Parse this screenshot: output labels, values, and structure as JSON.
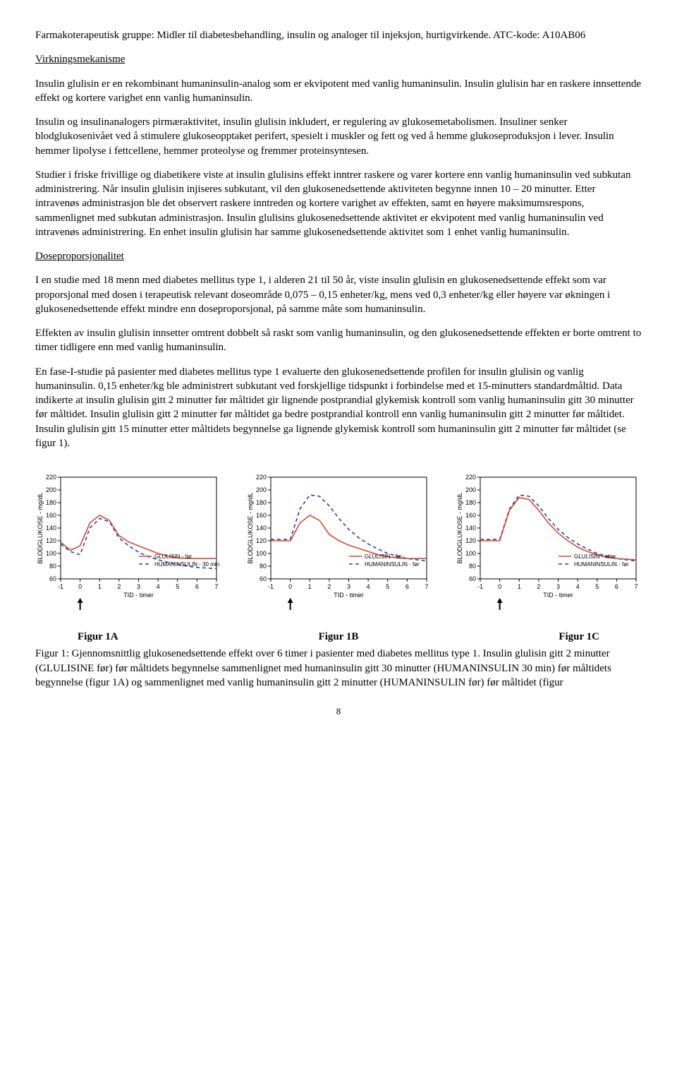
{
  "p1": "Farmakoterapeutisk gruppe: Midler til diabetesbehandling, insulin og analoger til injeksjon, hurtigvirkende. ATC-kode: A10AB06",
  "h1": "Virkningsmekanisme",
  "p2": "Insulin glulisin er en rekombinant humaninsulin-analog som er ekvipotent med vanlig humaninsulin. Insulin glulisin har en raskere innsettende effekt og kortere varighet enn vanlig humaninsulin.",
  "p3": "Insulin og insulinanalogers pirmæraktivitet, insulin glulisin inkludert, er regulering av glukosemetabolismen. Insuliner senker blodglukosenivået ved å stimulere glukoseopptaket perifert, spesielt i muskler og fett og ved å hemme glukoseproduksjon i lever. Insulin hemmer lipolyse i fettcellene, hemmer proteolyse og fremmer proteinsyntesen.",
  "p4": "Studier i friske frivillige og diabetikere viste at insulin glulisins effekt inntrer raskere og varer kortere enn vanlig humaninsulin ved subkutan administrering. Når insulin glulisin injiseres subkutant, vil den glukosenedsettende aktiviteten begynne innen 10 – 20 minutter. Etter intravenøs administrasjon ble det observert raskere inntreden og kortere varighet av effekten, samt en høyere maksimumsrespons, sammenlignet med subkutan administrasjon. Insulin glulisins glukosenedsettende aktivitet er ekvipotent med vanlig humaninsulin ved intravenøs administrering. En enhet insulin glulisin har samme glukosenedsettende aktivitet som 1 enhet vanlig humaninsulin.",
  "h2": "Doseproporsjonalitet",
  "p5": "I en studie med 18 menn med diabetes mellitus type 1, i alderen 21 til 50 år, viste insulin glulisin en glukosenedsettende effekt som var proporsjonal med dosen i terapeutisk relevant doseområde 0,075 – 0,15 enheter/kg, mens ved 0,3 enheter/kg eller høyere var økningen i glukosenedsettende effekt mindre enn doseproporsjonal, på samme måte som humaninsulin.",
  "p6": "Effekten av insulin glulisin innsetter omtrent dobbelt så raskt som vanlig humaninsulin, og den glukosenedsettende effekten er borte omtrent to timer tidligere enn med vanlig humaninsulin.",
  "p7": "En fase-I-studie på pasienter med diabetes mellitus type 1 evaluerte den glukosenedsettende profilen for insulin glulisin og vanlig humaninsulin. 0,15 enheter/kg ble administrert subkutant ved forskjellige tidspunkt i forbindelse med et 15-minutters standardmåltid. Data indikerte at insulin glulisin gitt 2 minutter før måltidet gir lignende postprandial glykemisk kontroll som vanlig humaninsulin gitt 30 minutter før måltidet. Insulin glulisin gitt 2 minutter før måltidet ga bedre postprandial kontroll enn vanlig humaninsulin gitt 2 minutter før måltidet. Insulin glulisin gitt 15 minutter etter måltidets begynnelse ga lignende glykemisk kontroll som humaninsulin gitt 2 minutter før måltidet (se figur 1).",
  "chart": {
    "ylabel": "BLODGLUKOSE - mg/dL",
    "xlabel": "TID - timer",
    "yticks": [
      60,
      80,
      100,
      120,
      140,
      160,
      180,
      200,
      220
    ],
    "xticks": [
      -1,
      0,
      1,
      2,
      3,
      4,
      5,
      6,
      7
    ],
    "colors": {
      "solid": "#d9472a",
      "dash": "#2a3db0"
    }
  },
  "chartA": {
    "legend_solid": "GLULISIN - før",
    "legend_dash": "HUMANINSULIN  - 30 min",
    "caption": "Figur 1A",
    "solid": [
      [
        -1,
        118
      ],
      [
        -0.5,
        105
      ],
      [
        0,
        112
      ],
      [
        0.5,
        148
      ],
      [
        1,
        160
      ],
      [
        1.5,
        152
      ],
      [
        2,
        128
      ],
      [
        2.5,
        118
      ],
      [
        3,
        112
      ],
      [
        3.5,
        106
      ],
      [
        4,
        100
      ],
      [
        4.5,
        96
      ],
      [
        5,
        93
      ],
      [
        5.5,
        92
      ],
      [
        6,
        92
      ],
      [
        6.5,
        92
      ],
      [
        7,
        92
      ]
    ],
    "dash": [
      [
        -1,
        115
      ],
      [
        -0.5,
        103
      ],
      [
        0,
        98
      ],
      [
        0.5,
        140
      ],
      [
        1,
        155
      ],
      [
        1.5,
        150
      ],
      [
        2,
        124
      ],
      [
        2.5,
        112
      ],
      [
        3,
        102
      ],
      [
        3.5,
        95
      ],
      [
        4,
        90
      ],
      [
        4.5,
        86
      ],
      [
        5,
        83
      ],
      [
        5.5,
        80
      ],
      [
        6,
        78
      ],
      [
        6.5,
        77
      ],
      [
        7,
        76
      ]
    ]
  },
  "chartB": {
    "legend_solid": "GLULISIN - før",
    "legend_dash": "HUMANINSULIN - før",
    "caption": "Figur 1B",
    "solid": [
      [
        -1,
        120
      ],
      [
        -0.5,
        120
      ],
      [
        0,
        120
      ],
      [
        0.5,
        148
      ],
      [
        1,
        160
      ],
      [
        1.5,
        152
      ],
      [
        2,
        130
      ],
      [
        2.5,
        120
      ],
      [
        3,
        113
      ],
      [
        3.5,
        108
      ],
      [
        4,
        103
      ],
      [
        4.5,
        98
      ],
      [
        5,
        95
      ],
      [
        5.5,
        93
      ],
      [
        6,
        92
      ],
      [
        6.5,
        92
      ],
      [
        7,
        92
      ]
    ],
    "dash": [
      [
        -1,
        122
      ],
      [
        -0.5,
        122
      ],
      [
        0,
        122
      ],
      [
        0.5,
        170
      ],
      [
        1,
        192
      ],
      [
        1.5,
        190
      ],
      [
        2,
        175
      ],
      [
        2.5,
        155
      ],
      [
        3,
        138
      ],
      [
        3.5,
        125
      ],
      [
        4,
        115
      ],
      [
        4.5,
        107
      ],
      [
        5,
        100
      ],
      [
        5.5,
        96
      ],
      [
        6,
        92
      ],
      [
        6.5,
        90
      ],
      [
        7,
        88
      ]
    ]
  },
  "chartC": {
    "legend_solid": "GLULISIN - etter",
    "legend_dash": "HUMANINSULIN - før",
    "caption": "Figur 1C",
    "solid": [
      [
        -1,
        120
      ],
      [
        -0.5,
        120
      ],
      [
        0,
        120
      ],
      [
        0.5,
        168
      ],
      [
        1,
        188
      ],
      [
        1.5,
        185
      ],
      [
        2,
        168
      ],
      [
        2.5,
        148
      ],
      [
        3,
        132
      ],
      [
        3.5,
        120
      ],
      [
        4,
        110
      ],
      [
        4.5,
        103
      ],
      [
        5,
        98
      ],
      [
        5.5,
        94
      ],
      [
        6,
        92
      ],
      [
        6.5,
        91
      ],
      [
        7,
        90
      ]
    ],
    "dash": [
      [
        -1,
        122
      ],
      [
        -0.5,
        122
      ],
      [
        0,
        122
      ],
      [
        0.5,
        170
      ],
      [
        1,
        192
      ],
      [
        1.5,
        190
      ],
      [
        2,
        175
      ],
      [
        2.5,
        155
      ],
      [
        3,
        138
      ],
      [
        3.5,
        125
      ],
      [
        4,
        115
      ],
      [
        4.5,
        107
      ],
      [
        5,
        100
      ],
      [
        5.5,
        96
      ],
      [
        6,
        92
      ],
      [
        6.5,
        90
      ],
      [
        7,
        88
      ]
    ]
  },
  "fig_caption": "Figur 1: Gjennomsnittlig glukosenedsettende effekt over 6 timer i pasienter med diabetes mellitus type 1. Insulin glulisin gitt 2 minutter (GLULISINE før) før måltidets begynnelse sammenlignet med humaninsulin gitt 30 minutter (HUMANINSULIN 30 min) før måltidets begynnelse (figur 1A) og sammenlignet med vanlig humaninsulin gitt 2 minutter (HUMANINSULIN før) før måltidet (figur",
  "page_num": "8"
}
